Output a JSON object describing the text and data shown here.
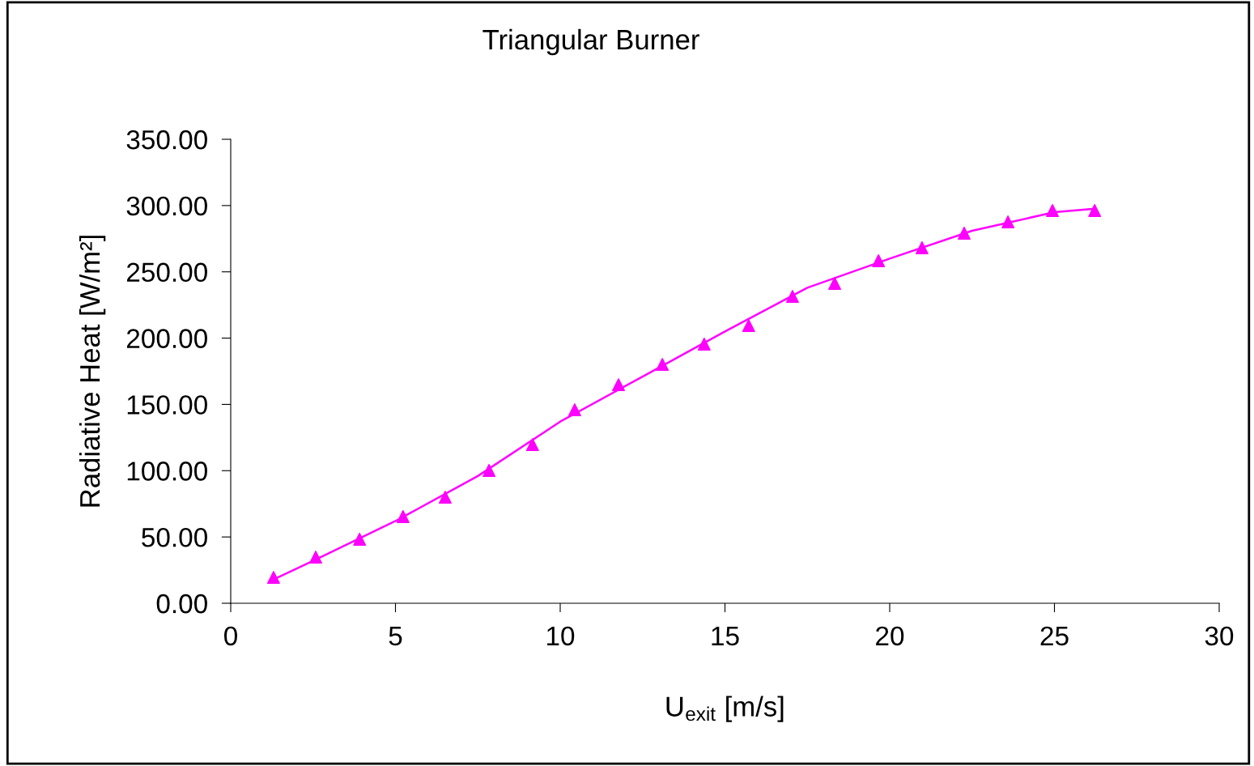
{
  "chart_data": {
    "type": "scatter",
    "title": "Triangular Burner",
    "xlabel": "U$_{exit}$ [m/s]",
    "ylabel": "Radiative Heat [W/m²]",
    "xlim": [
      0,
      30
    ],
    "xticks": [
      0,
      5,
      10,
      15,
      20,
      25,
      30
    ],
    "ylim": [
      0,
      350
    ],
    "yticks": [
      {
        "value": 0,
        "label": "0.00"
      },
      {
        "value": 50,
        "label": "50.00"
      },
      {
        "value": 100,
        "label": "100.00"
      },
      {
        "value": 150,
        "label": "150.00"
      },
      {
        "value": 200,
        "label": "200.00"
      },
      {
        "value": 250,
        "label": "250.00"
      },
      {
        "value": 300,
        "label": "300.00"
      },
      {
        "value": 350,
        "label": "350.00"
      }
    ],
    "grid": false,
    "legend": false,
    "series": [
      {
        "marker": "triangle",
        "color": "#ff00ff",
        "x": [
          1.3,
          2.58,
          3.91,
          5.23,
          6.51,
          7.84,
          9.16,
          10.44,
          11.77,
          13.1,
          14.37,
          15.72,
          17.05,
          18.33,
          19.66,
          20.98,
          22.26,
          23.59,
          24.94,
          26.22
        ],
        "values": [
          19.5,
          34.8,
          48.3,
          65.4,
          80.0,
          100.2,
          119.7,
          146.0,
          164.9,
          180.2,
          195.5,
          209.5,
          231.5,
          241.3,
          258.4,
          268.2,
          279.2,
          287.7,
          296.3,
          296.3
        ]
      },
      {
        "type": "line",
        "marker": "none",
        "line_style": "solid",
        "color": "#ff00ff",
        "x": [
          1.3,
          2.5,
          5,
          7.5,
          10,
          12.5,
          15,
          17.5,
          20,
          22.5,
          25,
          26.2
        ],
        "values": [
          18,
          32,
          62,
          96,
          137,
          171,
          205,
          238,
          260,
          281,
          295,
          297.5
        ]
      }
    ]
  }
}
